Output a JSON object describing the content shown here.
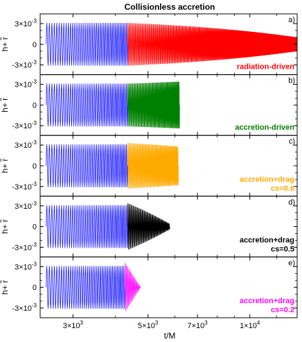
{
  "figure": {
    "title": "Collisionless accretion",
    "xlabel": "t/M",
    "x_ticks": [
      {
        "value": 3000,
        "mantissa": "3×10",
        "exp": "3"
      },
      {
        "value": 5000,
        "mantissa": "5×10",
        "exp": "3"
      },
      {
        "value": 7000,
        "mantissa": "7×10",
        "exp": "3"
      },
      {
        "value": 10000,
        "mantissa": "1×10",
        "exp": "4"
      }
    ],
    "y_ticks": [
      {
        "value": 0.003,
        "mantissa": "3×10",
        "exp": "-3"
      },
      {
        "value": 0,
        "mantissa": "0",
        "exp": ""
      },
      {
        "value": -0.003,
        "mantissa": "-3×10",
        "exp": "-3"
      }
    ]
  },
  "chart_data": [
    {
      "type": "line",
      "panel": "a)",
      "x_scale": "log",
      "xlim": [
        2400,
        13800
      ],
      "ylim": [
        -0.0036,
        0.0036
      ],
      "ylabel": "h+ r̃",
      "label_lines": [
        "radiation-driven"
      ],
      "label_color": "#ff0000",
      "series": [
        {
          "t_start": 2500,
          "t_end": 4350,
          "amplitude": 0.0031,
          "cycles": 42,
          "color": "#1a1aff"
        },
        {
          "t_start": 4350,
          "t_end": 13800,
          "amplitude_start": 0.0031,
          "amplitude_end": 0.001,
          "cycles": 250,
          "color": "#ff0000"
        }
      ]
    },
    {
      "type": "line",
      "panel": "b)",
      "x_scale": "log",
      "xlim": [
        2400,
        13800
      ],
      "ylim": [
        -0.0036,
        0.0036
      ],
      "ylabel": "h+ r̃",
      "label_lines": [
        "accretion-driven"
      ],
      "label_color": "#008000",
      "series": [
        {
          "t_start": 2500,
          "t_end": 4350,
          "amplitude": 0.0031,
          "cycles": 42,
          "color": "#1a1aff"
        },
        {
          "t_start": 4350,
          "t_end": 6200,
          "amplitude_start": 0.0031,
          "amplitude_end": 0.0034,
          "cycles": 62,
          "color": "#008000"
        }
      ]
    },
    {
      "type": "line",
      "panel": "c)",
      "x_scale": "log",
      "xlim": [
        2400,
        13800
      ],
      "ylim": [
        -0.0036,
        0.0036
      ],
      "ylabel": "h+ r̃",
      "label_lines": [
        "accretion+drag",
        "cs=0.6"
      ],
      "label_color": "#ffaa00",
      "series": [
        {
          "t_start": 2500,
          "t_end": 4350,
          "amplitude": 0.0031,
          "cycles": 42,
          "color": "#1a1aff"
        },
        {
          "t_start": 4350,
          "t_end": 6150,
          "amplitude_start": 0.0033,
          "amplitude_end": 0.0028,
          "cycles": 60,
          "color": "#ffaa00"
        }
      ]
    },
    {
      "type": "line",
      "panel": "d)",
      "x_scale": "log",
      "xlim": [
        2400,
        13800
      ],
      "ylim": [
        -0.0036,
        0.0036
      ],
      "ylabel": "h+ r̃",
      "label_lines": [
        "accretion+drag",
        "cs=0.5"
      ],
      "label_color": "#000000",
      "series": [
        {
          "t_start": 2500,
          "t_end": 4350,
          "amplitude": 0.0031,
          "cycles": 42,
          "color": "#1a1aff"
        },
        {
          "t_start": 4350,
          "t_end": 5800,
          "amplitude_start": 0.0034,
          "amplitude_end": 0.0004,
          "cycles": 45,
          "color": "#000000"
        }
      ]
    },
    {
      "type": "line",
      "panel": "e)",
      "x_scale": "log",
      "xlim": [
        2400,
        13800
      ],
      "ylim": [
        -0.0036,
        0.0036
      ],
      "ylabel": "h+ r̃",
      "label_lines": [
        "accretion+drag",
        "cs=0.2"
      ],
      "label_color": "#ff00ff",
      "series": [
        {
          "t_start": 2500,
          "t_end": 4270,
          "amplitude": 0.0031,
          "cycles": 40,
          "color": "#1a1aff"
        },
        {
          "t_start": 4270,
          "t_end": 4750,
          "amplitude_start": 0.0036,
          "amplitude_end": 0.0,
          "cycles": 12,
          "color": "#ff00ff"
        }
      ]
    }
  ]
}
